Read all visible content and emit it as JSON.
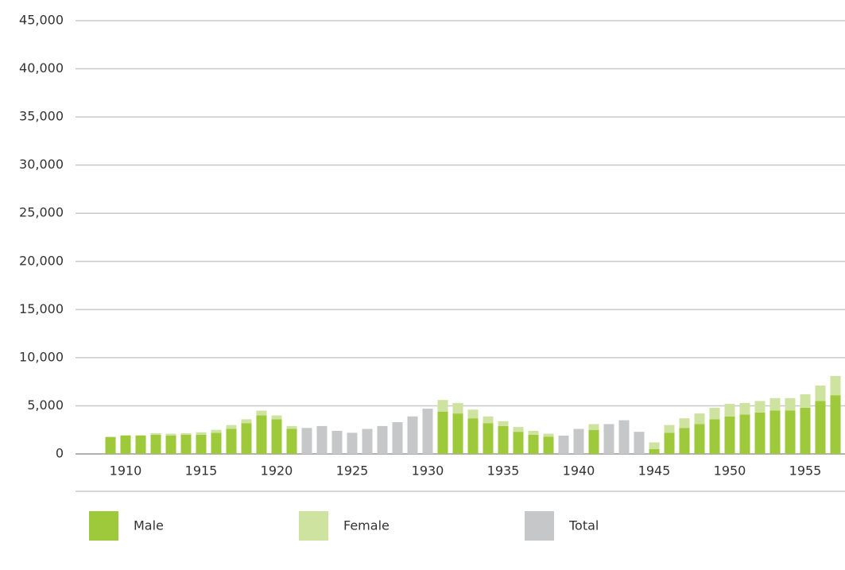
{
  "chart_data": {
    "type": "bar",
    "stacked": true,
    "categories": [
      null,
      1910,
      null,
      null,
      null,
      null,
      1915,
      null,
      null,
      null,
      null,
      1920,
      null,
      null,
      null,
      null,
      1925,
      null,
      null,
      null,
      null,
      1930,
      null,
      null,
      null,
      null,
      1935,
      null,
      null,
      null,
      null,
      1940,
      null,
      null,
      null,
      null,
      1945,
      null,
      null,
      null,
      null,
      1950,
      null,
      null,
      null,
      null,
      1955,
      null,
      null
    ],
    "series": [
      {
        "name": "Male",
        "color": "#9dc93a",
        "values": [
          1750,
          1900,
          1900,
          2000,
          1900,
          2000,
          2000,
          2200,
          2600,
          3200,
          4000,
          3600,
          2600,
          null,
          null,
          null,
          null,
          null,
          null,
          null,
          null,
          null,
          4400,
          4200,
          3700,
          3200,
          2900,
          2300,
          2000,
          1800,
          null,
          null,
          2500,
          null,
          null,
          null,
          500,
          2200,
          2700,
          3100,
          3600,
          3900,
          4100,
          4300,
          4500,
          4500,
          4800,
          5500,
          6100
        ]
      },
      {
        "name": "Female",
        "color": "#cfe3a0",
        "values": [
          50,
          50,
          50,
          150,
          200,
          150,
          250,
          300,
          400,
          400,
          500,
          400,
          300,
          null,
          null,
          null,
          null,
          null,
          null,
          null,
          null,
          null,
          1200,
          1100,
          900,
          700,
          500,
          500,
          400,
          300,
          null,
          null,
          600,
          null,
          null,
          null,
          700,
          800,
          1000,
          1100,
          1200,
          1300,
          1200,
          1200,
          1300,
          1300,
          1400,
          1600,
          2000
        ]
      },
      {
        "name": "Total",
        "color": "#c6c7c9",
        "values": [
          null,
          null,
          null,
          null,
          null,
          null,
          null,
          null,
          null,
          null,
          null,
          null,
          null,
          2700,
          2900,
          2400,
          2200,
          2600,
          2900,
          3300,
          3900,
          4700,
          null,
          null,
          null,
          null,
          null,
          null,
          null,
          null,
          1900,
          2600,
          null,
          3100,
          3500,
          2300,
          null,
          null,
          null,
          null,
          null,
          null,
          null,
          null,
          null,
          null,
          null,
          null,
          null
        ]
      }
    ],
    "ylim": [
      0,
      45000
    ],
    "yticks": [
      0,
      {
        "value": 5000,
        "label": "5,000"
      },
      {
        "value": 10000,
        "label": "10,000"
      },
      {
        "value": 15000,
        "label": "15,000"
      },
      {
        "value": 20000,
        "label": "20,000"
      },
      {
        "value": 25000,
        "label": "25,000"
      },
      {
        "value": 30000,
        "label": "30,000"
      },
      {
        "value": 35000,
        "label": "35,000"
      },
      {
        "value": 40000,
        "label": "40,000"
      },
      {
        "value": 45000,
        "label": "45,000"
      }
    ],
    "grid": true,
    "legend": "bottom"
  }
}
